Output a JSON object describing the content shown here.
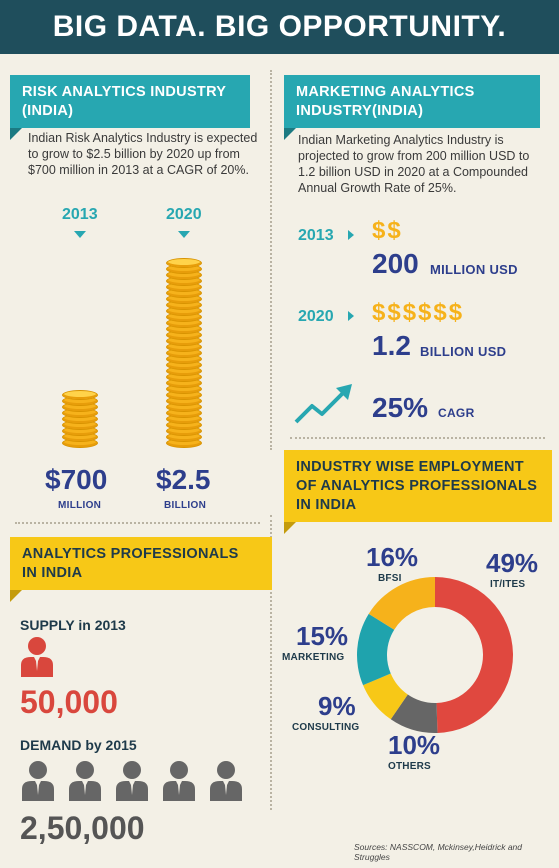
{
  "title": "BIG DATA. BIG OPPORTUNITY.",
  "risk": {
    "heading_line1": "RISK ANALYTICS INDUSTRY",
    "heading_line2": "(INDIA)",
    "description": "Indian Risk Analytics Industry is expected to grow to $2.5 billion by 2020 up from $700 million in 2013 at a CAGR of 20%.",
    "year_a": "2013",
    "year_b": "2020",
    "value_a": "$700",
    "unit_a": "MILLION",
    "value_b": "$2.5",
    "unit_b": "BILLION"
  },
  "marketing": {
    "heading_line1": "MARKETING ANALYTICS",
    "heading_line2": "INDUSTRY(INDIA)",
    "description": "Indian Marketing Analytics Industry is projected to grow from 200 million USD to 1.2 billion USD in 2020 at a Compounded Annual Growth Rate of 25%.",
    "row1": {
      "year": "2013",
      "dollars": "$$",
      "value": "200",
      "unit": "MILLION USD"
    },
    "row2": {
      "year": "2020",
      "dollars": "$$$$$$",
      "value": "1.2",
      "unit": "BILLION USD"
    },
    "cagr_value": "25%",
    "cagr_label": "CAGR"
  },
  "professionals": {
    "heading_line1": "ANALYTICS PROFESSIONALS",
    "heading_line2": "IN INDIA",
    "supply_label": "SUPPLY in 2013",
    "supply_value": "50,000",
    "demand_label": "DEMAND by 2015",
    "demand_value": "2,50,000"
  },
  "employment": {
    "heading_line1": "INDUSTRY WISE EMPLOYMENT",
    "heading_line2": "OF ANALYTICS PROFESSIONALS",
    "heading_line3": "IN INDIA"
  },
  "colors": {
    "navy": "#1f4e5c",
    "teal": "#27a7b1",
    "yellow": "#f7c817",
    "gold": "#f6b21b",
    "blue_text": "#2d3e8c",
    "red": "#d9473d",
    "grey": "#666666"
  },
  "chart_data": [
    {
      "type": "bar",
      "categories": [
        "2013",
        "2020"
      ],
      "values": [
        700,
        2500
      ],
      "value_labels": [
        "$700 MILLION",
        "$2.5 BILLION"
      ],
      "encoding": "coin stacks"
    },
    {
      "type": "pie",
      "style": "donut",
      "categories": [
        "IT/ITES",
        "OTHERS",
        "CONSULTING",
        "MARKETING",
        "BFSI"
      ],
      "values": [
        49,
        10,
        9,
        15,
        16
      ],
      "labels": [
        "49%",
        "10%",
        "9%",
        "15%",
        "16%"
      ],
      "colors": [
        "#e0483f",
        "#666666",
        "#f7c817",
        "#1fa3ad",
        "#f6b21b"
      ]
    }
  ],
  "source": "Sources: NASSCOM, Mckinsey,Heidrick and Struggles"
}
